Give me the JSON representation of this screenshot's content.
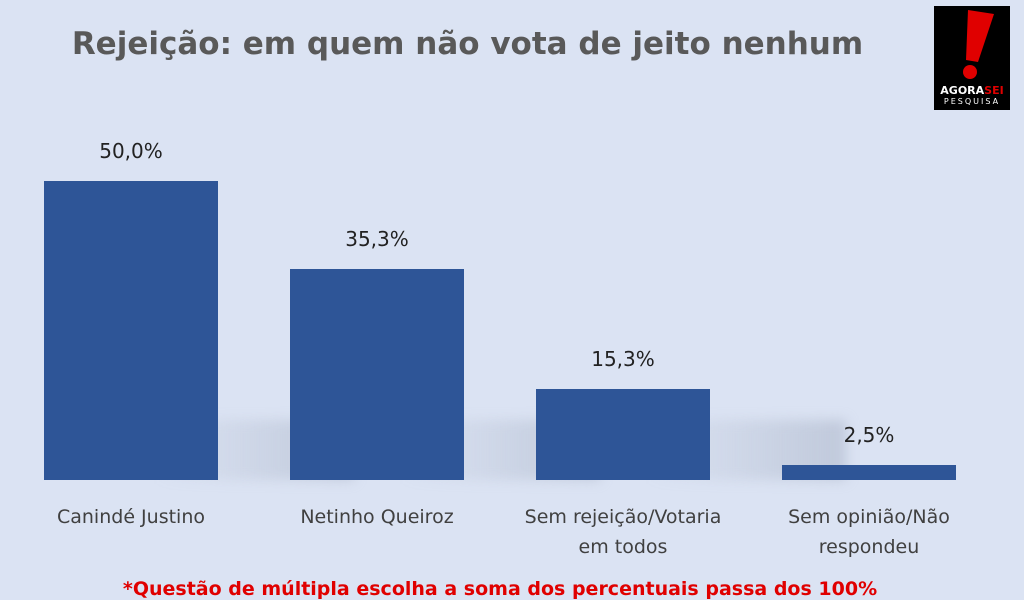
{
  "chart_data": {
    "type": "bar",
    "title": "Rejeição: em quem não vota de jeito nenhum",
    "categories": [
      "Canindé Justino",
      "Netinho Queiroz",
      "Sem rejeição/Votaria em todos",
      "Sem opinião/Não respondeu"
    ],
    "values": [
      50.0,
      35.3,
      15.3,
      2.5
    ],
    "value_labels": [
      "50,0%",
      "35,3%",
      "15,3%",
      "2,5%"
    ],
    "color": "#2e5597",
    "footnote": "*Questão de múltipla escolha a soma dos percentuais passa dos 100%"
  },
  "logo": {
    "brand_left": "AGORA",
    "brand_right": "SEI",
    "subtitle": "PESQUISA"
  }
}
